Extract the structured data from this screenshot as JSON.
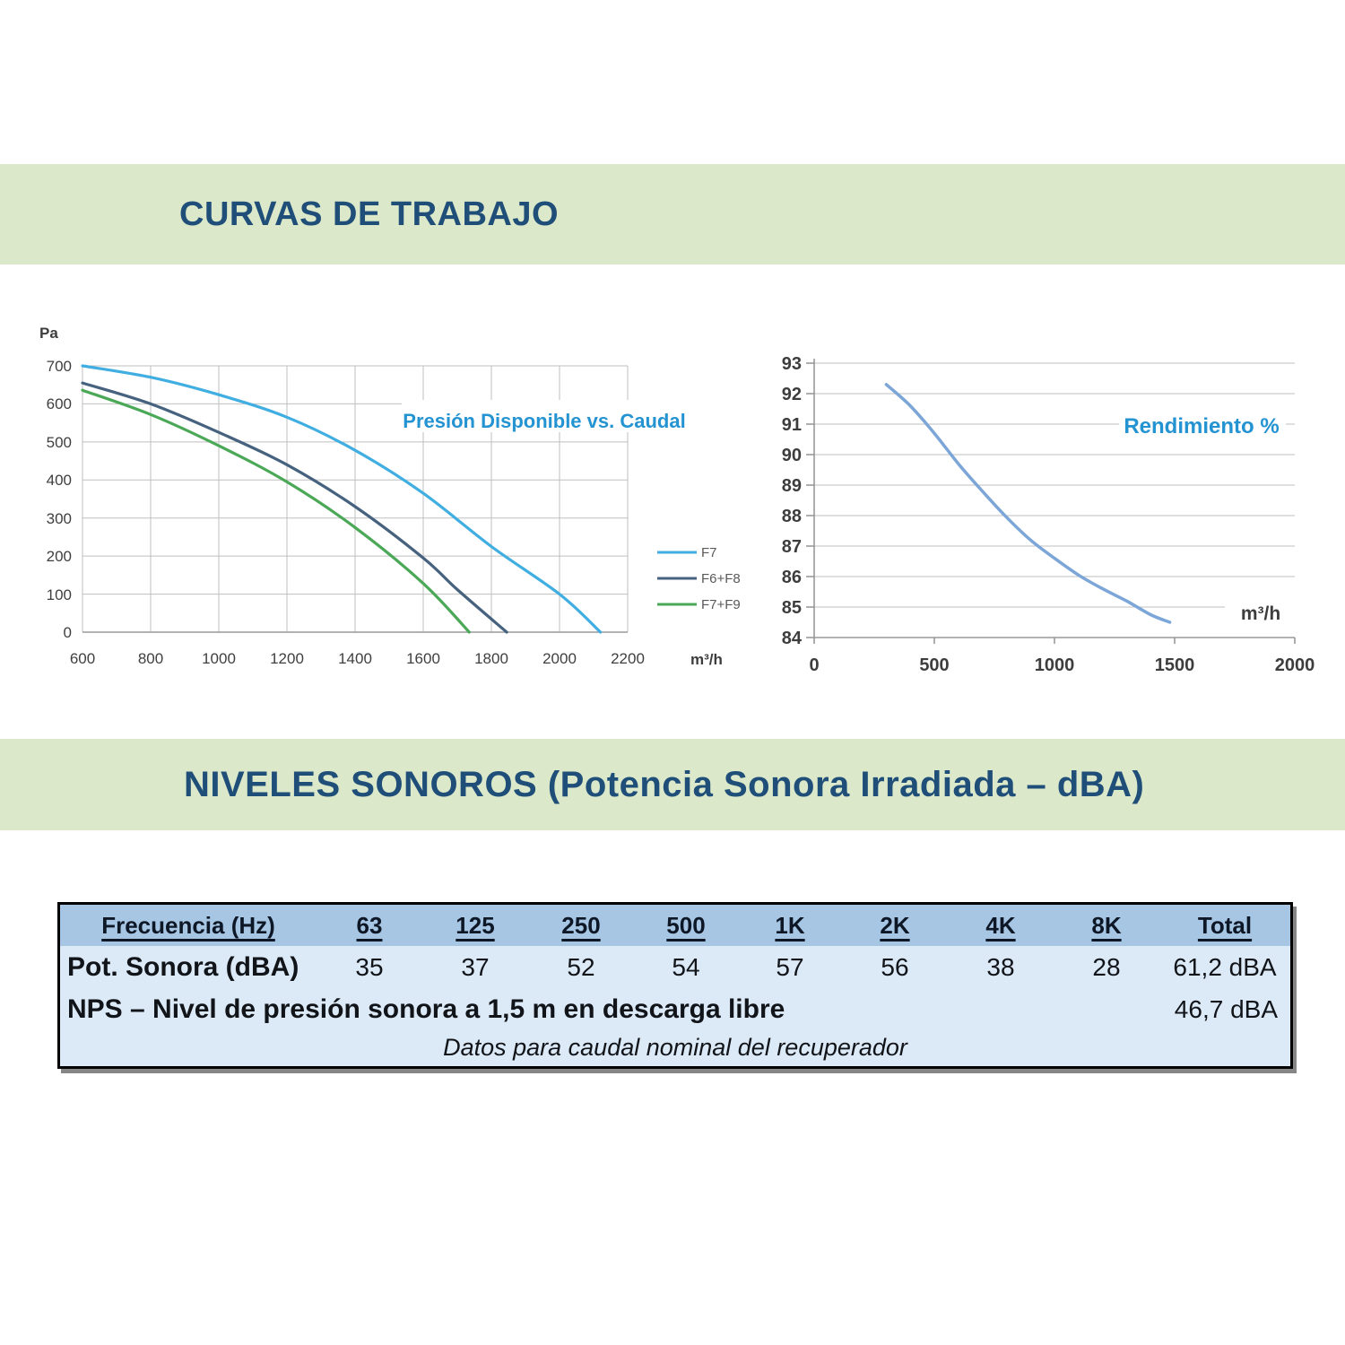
{
  "sections": {
    "curves": {
      "title": "CURVAS DE TRABAJO"
    },
    "sound": {
      "title": "NIVELES SONOROS (Potencia Sonora Irradiada – dBA)"
    }
  },
  "colors": {
    "band_green": "#dbe8c9",
    "heading_blue": "#1f4e79",
    "chart_title_blue": "#2493d1",
    "f7": "#41aee2",
    "f6f8": "#46627f",
    "f7f9": "#4aa857",
    "efficiency_curve": "#7ca6d8",
    "table_header_bg": "#a6c6e4",
    "table_body_bg": "#dce9f7"
  },
  "chart_data": [
    {
      "type": "line",
      "title": "Presión Disponible vs. Caudal",
      "ylabel": "Pa",
      "xlabel": "m³/h",
      "xlim": [
        600,
        2200
      ],
      "ylim": [
        0,
        700
      ],
      "grid": true,
      "legend_position": "right",
      "x_ticks": [
        "600",
        "800",
        "1000",
        "1200",
        "1400",
        "1600",
        "1800",
        "2000",
        "2200"
      ],
      "y_ticks": [
        "700",
        "600",
        "500",
        "400",
        "300",
        "200",
        "100",
        "0"
      ],
      "series": [
        {
          "name": "F7",
          "color": "#41aee2",
          "points": [
            [
              600,
              700
            ],
            [
              800,
              670
            ],
            [
              1000,
              624
            ],
            [
              1200,
              565
            ],
            [
              1400,
              478
            ],
            [
              1600,
              365
            ],
            [
              1800,
              225
            ],
            [
              2000,
              100
            ],
            [
              2120,
              0
            ]
          ]
        },
        {
          "name": "F6+F8",
          "color": "#46627f",
          "points": [
            [
              600,
              655
            ],
            [
              800,
              600
            ],
            [
              1000,
              525
            ],
            [
              1200,
              440
            ],
            [
              1400,
              330
            ],
            [
              1600,
              195
            ],
            [
              1700,
              112
            ],
            [
              1845,
              0
            ]
          ]
        },
        {
          "name": "F7+F9",
          "color": "#4aa857",
          "points": [
            [
              600,
              636
            ],
            [
              800,
              572
            ],
            [
              1000,
              490
            ],
            [
              1200,
              395
            ],
            [
              1400,
              275
            ],
            [
              1600,
              128
            ],
            [
              1735,
              0
            ]
          ]
        }
      ]
    },
    {
      "type": "line",
      "title": "Rendimiento %",
      "ylabel": "",
      "xlabel": "m³/h",
      "xlim": [
        0,
        2000
      ],
      "ylim": [
        84,
        93
      ],
      "grid": true,
      "x_ticks": [
        "0",
        "500",
        "1000",
        "1500",
        "2000"
      ],
      "y_ticks": [
        "93",
        "92",
        "91",
        "90",
        "89",
        "88",
        "87",
        "86",
        "85",
        "84"
      ],
      "series": [
        {
          "name": "Rendimiento %",
          "color": "#7ca6d8",
          "points": [
            [
              300,
              92.3
            ],
            [
              400,
              91.6
            ],
            [
              500,
              90.7
            ],
            [
              600,
              89.7
            ],
            [
              700,
              88.8
            ],
            [
              800,
              87.95
            ],
            [
              900,
              87.2
            ],
            [
              1000,
              86.6
            ],
            [
              1100,
              86.05
            ],
            [
              1200,
              85.6
            ],
            [
              1300,
              85.2
            ],
            [
              1400,
              84.75
            ],
            [
              1480,
              84.5
            ]
          ]
        }
      ]
    }
  ],
  "table": {
    "header": [
      "Frecuencia (Hz)",
      "63",
      "125",
      "250",
      "500",
      "1K",
      "2K",
      "4K",
      "8K",
      "Total"
    ],
    "rows": [
      {
        "label": "Pot. Sonora (dBA)",
        "values": [
          "35",
          "37",
          "52",
          "54",
          "57",
          "56",
          "38",
          "28"
        ],
        "total": "61,2 dBA"
      },
      {
        "label": "NPS – Nivel de presión sonora a 1,5 m en descarga libre",
        "total": "46,7 dBA"
      }
    ],
    "footer": "Datos para caudal nominal del recuperador"
  }
}
